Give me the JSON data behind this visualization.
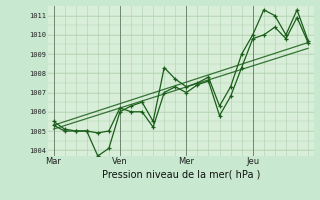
{
  "bg_color": "#c8e8d0",
  "plot_bg": "#d8eed8",
  "grid_color": "#b0d0b0",
  "vline_color": "#708870",
  "line_color": "#1a5e1a",
  "marker_color": "#1a5e1a",
  "title": "Pression niveau de la mer( hPa )",
  "ylabel_ticks": [
    1004,
    1005,
    1006,
    1007,
    1008,
    1009,
    1010,
    1011
  ],
  "ylim": [
    1003.7,
    1011.5
  ],
  "day_labels": [
    "Mar",
    "Ven",
    "Mer",
    "Jeu"
  ],
  "day_positions": [
    0,
    6,
    12,
    18
  ],
  "xlim": [
    -0.5,
    23.5
  ],
  "series1": [
    1005.5,
    1005.1,
    1005.0,
    1005.0,
    1003.7,
    1004.1,
    1006.0,
    1006.3,
    1006.5,
    1005.5,
    1008.3,
    1007.7,
    1007.3,
    1007.5,
    1007.8,
    1006.3,
    1007.3,
    1009.0,
    1010.0,
    1011.3,
    1011.0,
    1010.0,
    1011.3,
    1009.7
  ],
  "series2": [
    1005.3,
    1005.0,
    1005.0,
    1005.0,
    1004.9,
    1005.0,
    1006.2,
    1006.0,
    1006.0,
    1005.2,
    1007.0,
    1007.3,
    1007.0,
    1007.4,
    1007.6,
    1005.8,
    1006.8,
    1008.3,
    1009.8,
    1010.0,
    1010.4,
    1009.8,
    1010.9,
    1009.6
  ],
  "trend1_x": [
    0,
    23
  ],
  "trend1_y": [
    1005.1,
    1009.3
  ],
  "trend2_x": [
    0,
    23
  ],
  "trend2_y": [
    1005.3,
    1009.6
  ]
}
